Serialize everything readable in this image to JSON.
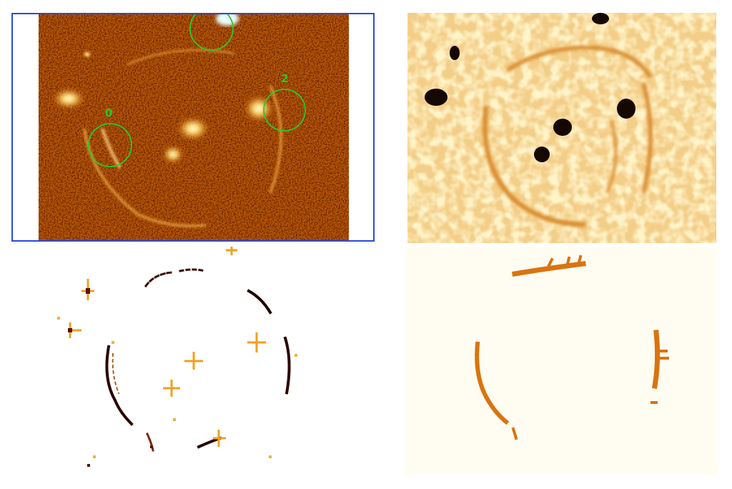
{
  "panels": [
    {
      "id": "observed-image",
      "colors": {
        "frame": "#2a4bd8",
        "marker": "#1fd02a"
      }
    },
    {
      "id": "smoothed-image"
    },
    {
      "id": "detected-arcs"
    },
    {
      "id": "arc-mask",
      "colors": {
        "fill": "#d9740f"
      }
    }
  ],
  "markers": [
    {
      "label": "0"
    },
    {
      "label": "2"
    },
    {
      "label": ""
    }
  ]
}
